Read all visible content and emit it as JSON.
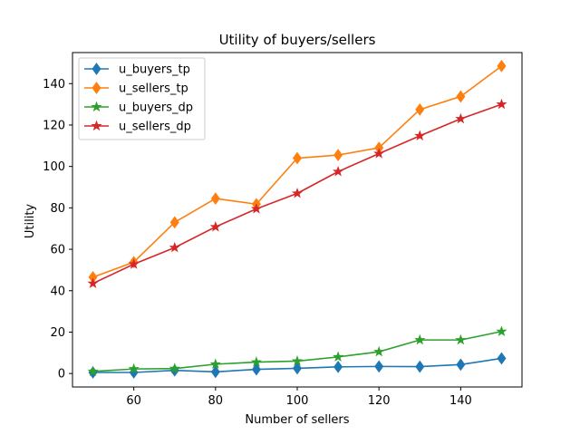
{
  "chart_data": {
    "type": "line",
    "title": "Utility of buyers/sellers",
    "xlabel": "Number of sellers",
    "ylabel": "Utility",
    "x": [
      50,
      60,
      70,
      80,
      90,
      100,
      110,
      120,
      130,
      140,
      150
    ],
    "xlim": [
      45,
      155
    ],
    "ylim": [
      -6.5,
      155
    ],
    "xticks": [
      60,
      80,
      100,
      120,
      140
    ],
    "yticks": [
      0,
      20,
      40,
      60,
      80,
      100,
      120,
      140
    ],
    "grid": false,
    "legend_position": "upper-left",
    "series": [
      {
        "name": "u_buyers_tp",
        "color": "#1f77b4",
        "marker": "diamond",
        "values": [
          0.5,
          0.5,
          1.5,
          0.8,
          2.0,
          2.5,
          3.2,
          3.4,
          3.3,
          4.3,
          7.3
        ]
      },
      {
        "name": "u_sellers_tp",
        "color": "#ff7f0e",
        "marker": "diamond",
        "values": [
          46.5,
          53.8,
          73.0,
          84.5,
          81.8,
          104.0,
          105.5,
          109.0,
          127.5,
          133.8,
          148.5
        ]
      },
      {
        "name": "u_buyers_dp",
        "color": "#2ca02c",
        "marker": "star",
        "values": [
          1.0,
          2.2,
          2.4,
          4.5,
          5.5,
          6.0,
          8.0,
          10.5,
          16.2,
          16.2,
          20.3
        ]
      },
      {
        "name": "u_sellers_dp",
        "color": "#d62728",
        "marker": "star",
        "values": [
          43.5,
          52.8,
          60.8,
          70.8,
          79.5,
          87.0,
          97.5,
          106.2,
          114.8,
          123.0,
          130.0
        ]
      }
    ]
  }
}
